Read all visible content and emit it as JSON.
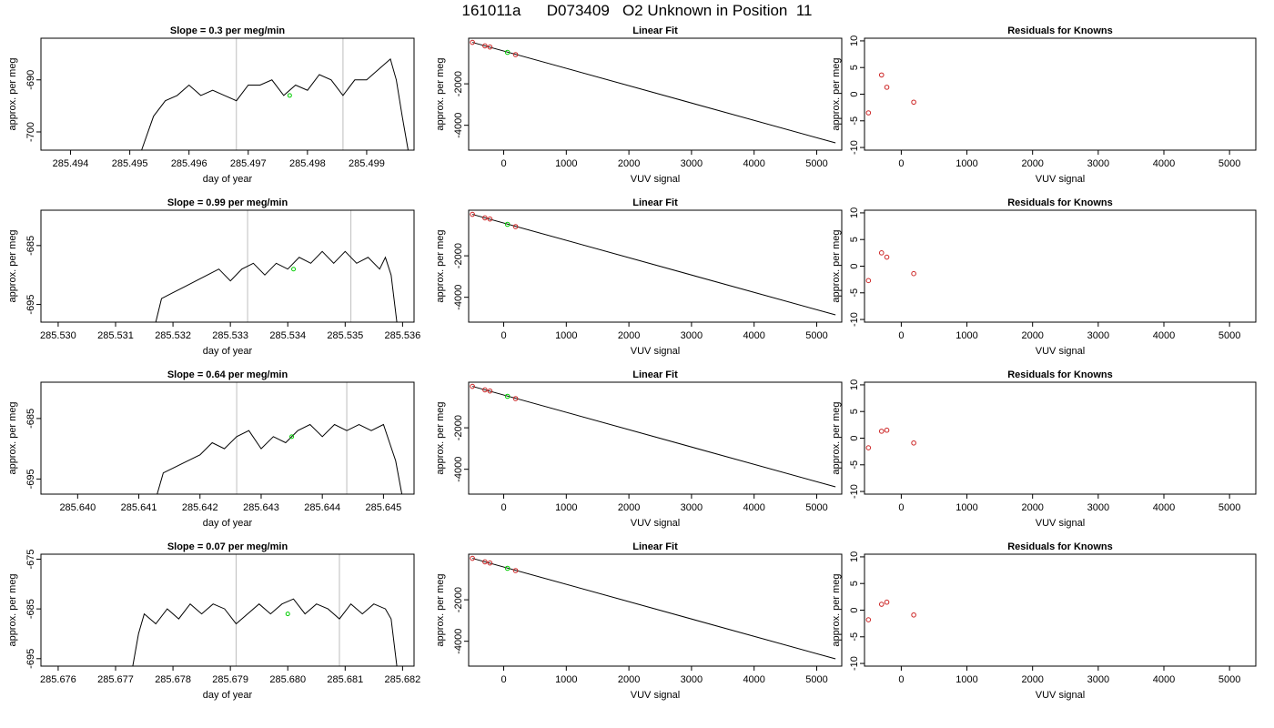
{
  "page_title": "161011a      D073409   O2 Unknown in Position  11",
  "colors": {
    "trace": "#000000",
    "vline": "#bebebe",
    "known": "#cd2626",
    "unknown": "#00cd00",
    "fit": "#000000"
  },
  "chart_data": [
    {
      "type": "line",
      "title": "Slope =  0.3  per meg/min",
      "xlabel": "day of year",
      "ylabel": "approx. per meg",
      "xlim": [
        285.4935,
        285.4998
      ],
      "ylim": [
        -703.5,
        -682
      ],
      "xticks": [
        "285.494",
        "285.495",
        "285.496",
        "285.497",
        "285.498",
        "285.499"
      ],
      "yticks": [
        "-690",
        "-700"
      ],
      "vlines": [
        285.4968,
        285.4986
      ],
      "trace_x": [
        285.4952,
        285.4954,
        285.4956,
        285.4958,
        285.496,
        285.4962,
        285.4964,
        285.4966,
        285.4968,
        285.497,
        285.4972,
        285.4974,
        285.4976,
        285.4978,
        285.498,
        285.4982,
        285.4984,
        285.4986,
        285.4988,
        285.499,
        285.4992,
        285.4994,
        285.4995,
        285.4996,
        285.4997
      ],
      "trace_y": [
        -703.5,
        -697,
        -694,
        -693,
        -691,
        -693,
        -692,
        -693,
        -694,
        -691,
        -691,
        -690,
        -693,
        -691,
        -692,
        -689,
        -690,
        -693,
        -690,
        -690,
        -688,
        -686,
        -690,
        -697,
        -703.5
      ],
      "marker": {
        "x": 285.4977,
        "y": -693
      }
    },
    {
      "type": "scatter",
      "title": "Linear Fit",
      "xlabel": "VUV signal",
      "ylabel": "approx. per meg",
      "xlim": [
        -560,
        5400
      ],
      "ylim": [
        -5200,
        200
      ],
      "xticks": [
        "0",
        "1000",
        "2000",
        "3000",
        "4000",
        "5000"
      ],
      "yticks": [
        "-2000",
        "-4000"
      ],
      "fit_line": [
        [
          -500,
          0
        ],
        [
          5300,
          -4850
        ]
      ],
      "knowns": [
        [
          -500,
          0
        ],
        [
          -300,
          -170
        ],
        [
          -220,
          -225
        ],
        [
          190,
          -590
        ]
      ],
      "unknown": [
        [
          60,
          -480
        ]
      ]
    },
    {
      "type": "scatter",
      "title": "Residuals for Knowns",
      "xlabel": "VUV signal",
      "ylabel": "approx. per meg",
      "xlim": [
        -560,
        5400
      ],
      "ylim": [
        -10.5,
        10.5
      ],
      "xticks": [
        "0",
        "1000",
        "2000",
        "3000",
        "4000",
        "5000"
      ],
      "yticks": [
        "-10",
        "-5",
        "0",
        "5",
        "10"
      ],
      "knowns": [
        [
          -500,
          -3.5
        ],
        [
          -300,
          3.6
        ],
        [
          -220,
          1.3
        ],
        [
          190,
          -1.5
        ]
      ]
    },
    {
      "type": "line",
      "title": "Slope =  0.99  per meg/min",
      "xlabel": "day of year",
      "ylabel": "approx. per meg",
      "xlim": [
        285.5297,
        285.5362
      ],
      "ylim": [
        -698,
        -679
      ],
      "xticks": [
        "285.530",
        "285.531",
        "285.532",
        "285.533",
        "285.534",
        "285.535",
        "285.536"
      ],
      "yticks": [
        "-685",
        "-695"
      ],
      "vlines": [
        285.5333,
        285.5351
      ],
      "trace_x": [
        285.5317,
        285.5318,
        285.532,
        285.5322,
        285.5324,
        285.5326,
        285.5328,
        285.533,
        285.5332,
        285.5334,
        285.5336,
        285.5338,
        285.534,
        285.5342,
        285.5344,
        285.5346,
        285.5348,
        285.535,
        285.5352,
        285.5354,
        285.5356,
        285.5357,
        285.5358,
        285.5359
      ],
      "trace_y": [
        -698,
        -694,
        -693,
        -692,
        -691,
        -690,
        -689,
        -691,
        -689,
        -688,
        -690,
        -688,
        -689,
        -687,
        -688,
        -686,
        -688,
        -686,
        -688,
        -687,
        -689,
        -687,
        -690,
        -698
      ],
      "marker": {
        "x": 285.5341,
        "y": -689
      }
    },
    {
      "type": "scatter",
      "title": "Linear Fit",
      "xlabel": "VUV signal",
      "ylabel": "approx. per meg",
      "xlim": [
        -560,
        5400
      ],
      "ylim": [
        -5200,
        200
      ],
      "xticks": [
        "0",
        "1000",
        "2000",
        "3000",
        "4000",
        "5000"
      ],
      "yticks": [
        "-2000",
        "-4000"
      ],
      "fit_line": [
        [
          -500,
          0
        ],
        [
          5300,
          -4850
        ]
      ],
      "knowns": [
        [
          -500,
          0
        ],
        [
          -300,
          -170
        ],
        [
          -220,
          -225
        ],
        [
          190,
          -590
        ]
      ],
      "unknown": [
        [
          60,
          -480
        ]
      ]
    },
    {
      "type": "scatter",
      "title": "Residuals for Knowns",
      "xlabel": "VUV signal",
      "ylabel": "approx. per meg",
      "xlim": [
        -560,
        5400
      ],
      "ylim": [
        -10.5,
        10.5
      ],
      "xticks": [
        "0",
        "1000",
        "2000",
        "3000",
        "4000",
        "5000"
      ],
      "yticks": [
        "-10",
        "-5",
        "0",
        "5",
        "10"
      ],
      "knowns": [
        [
          -500,
          -2.7
        ],
        [
          -300,
          2.5
        ],
        [
          -220,
          1.7
        ],
        [
          190,
          -1.4
        ]
      ]
    },
    {
      "type": "line",
      "title": "Slope =  0.64  per meg/min",
      "xlabel": "day of year",
      "ylabel": "approx. per meg",
      "xlim": [
        285.6394,
        285.6455
      ],
      "ylim": [
        -697.5,
        -679
      ],
      "xticks": [
        "285.640",
        "285.641",
        "285.642",
        "285.643",
        "285.644",
        "285.645"
      ],
      "yticks": [
        "-685",
        "-695"
      ],
      "vlines": [
        285.6426,
        285.6444
      ],
      "trace_x": [
        285.6413,
        285.6414,
        285.6416,
        285.6418,
        285.642,
        285.6422,
        285.6424,
        285.6426,
        285.6428,
        285.643,
        285.6432,
        285.6434,
        285.6436,
        285.6438,
        285.644,
        285.6442,
        285.6444,
        285.6446,
        285.6448,
        285.645,
        285.6451,
        285.6452,
        285.6453
      ],
      "trace_y": [
        -697.5,
        -694,
        -693,
        -692,
        -691,
        -689,
        -690,
        -688,
        -687,
        -690,
        -688,
        -689,
        -687,
        -686,
        -688,
        -686,
        -687,
        -686,
        -687,
        -686,
        -689,
        -692,
        -697.5
      ],
      "marker": {
        "x": 285.6435,
        "y": -688
      }
    },
    {
      "type": "scatter",
      "title": "Linear Fit",
      "xlabel": "VUV signal",
      "ylabel": "approx. per meg",
      "xlim": [
        -560,
        5400
      ],
      "ylim": [
        -5200,
        200
      ],
      "xticks": [
        "0",
        "1000",
        "2000",
        "3000",
        "4000",
        "5000"
      ],
      "yticks": [
        "-2000",
        "-4000"
      ],
      "fit_line": [
        [
          -500,
          0
        ],
        [
          5300,
          -4850
        ]
      ],
      "knowns": [
        [
          -500,
          0
        ],
        [
          -300,
          -170
        ],
        [
          -220,
          -225
        ],
        [
          190,
          -590
        ]
      ],
      "unknown": [
        [
          60,
          -480
        ]
      ]
    },
    {
      "type": "scatter",
      "title": "Residuals for Knowns",
      "xlabel": "VUV signal",
      "ylabel": "approx. per meg",
      "xlim": [
        -560,
        5400
      ],
      "ylim": [
        -10.5,
        10.5
      ],
      "xticks": [
        "0",
        "1000",
        "2000",
        "3000",
        "4000",
        "5000"
      ],
      "yticks": [
        "-10",
        "-5",
        "0",
        "5",
        "10"
      ],
      "knowns": [
        [
          -500,
          -1.8
        ],
        [
          -300,
          1.3
        ],
        [
          -220,
          1.5
        ],
        [
          190,
          -0.9
        ]
      ]
    },
    {
      "type": "line",
      "title": "Slope =  0.07  per meg/min",
      "xlabel": "day of year",
      "ylabel": "approx. per meg",
      "xlim": [
        285.6757,
        285.6822
      ],
      "ylim": [
        -696.5,
        -674
      ],
      "xticks": [
        "285.676",
        "285.677",
        "285.678",
        "285.679",
        "285.680",
        "285.681",
        "285.682"
      ],
      "yticks": [
        "-675",
        "-685",
        "-695"
      ],
      "vlines": [
        285.6791,
        285.6809
      ],
      "trace_x": [
        285.6773,
        285.6774,
        285.6775,
        285.6777,
        285.6779,
        285.6781,
        285.6783,
        285.6785,
        285.6787,
        285.6789,
        285.6791,
        285.6793,
        285.6795,
        285.6797,
        285.6799,
        285.6801,
        285.6803,
        285.6805,
        285.6807,
        285.6809,
        285.6811,
        285.6813,
        285.6815,
        285.6817,
        285.6818,
        285.6819
      ],
      "trace_y": [
        -696.5,
        -690,
        -686,
        -688,
        -685,
        -687,
        -684,
        -686,
        -684,
        -685,
        -688,
        -686,
        -684,
        -686,
        -684,
        -683,
        -686,
        -684,
        -685,
        -687,
        -684,
        -686,
        -684,
        -685,
        -687,
        -696.5
      ],
      "marker": {
        "x": 285.68,
        "y": -686
      }
    },
    {
      "type": "scatter",
      "title": "Linear Fit",
      "xlabel": "VUV signal",
      "ylabel": "approx. per meg",
      "xlim": [
        -560,
        5400
      ],
      "ylim": [
        -5200,
        200
      ],
      "xticks": [
        "0",
        "1000",
        "2000",
        "3000",
        "4000",
        "5000"
      ],
      "yticks": [
        "-2000",
        "-4000"
      ],
      "fit_line": [
        [
          -500,
          0
        ],
        [
          5300,
          -4850
        ]
      ],
      "knowns": [
        [
          -500,
          0
        ],
        [
          -300,
          -170
        ],
        [
          -220,
          -225
        ],
        [
          190,
          -590
        ]
      ],
      "unknown": [
        [
          60,
          -480
        ]
      ]
    },
    {
      "type": "scatter",
      "title": "Residuals for Knowns",
      "xlabel": "VUV signal",
      "ylabel": "approx. per meg",
      "xlim": [
        -560,
        5400
      ],
      "ylim": [
        -10.5,
        10.5
      ],
      "xticks": [
        "0",
        "1000",
        "2000",
        "3000",
        "4000",
        "5000"
      ],
      "yticks": [
        "-10",
        "-5",
        "0",
        "5",
        "10"
      ],
      "knowns": [
        [
          -500,
          -1.8
        ],
        [
          -300,
          1.1
        ],
        [
          -220,
          1.5
        ],
        [
          190,
          -0.9
        ]
      ]
    }
  ]
}
